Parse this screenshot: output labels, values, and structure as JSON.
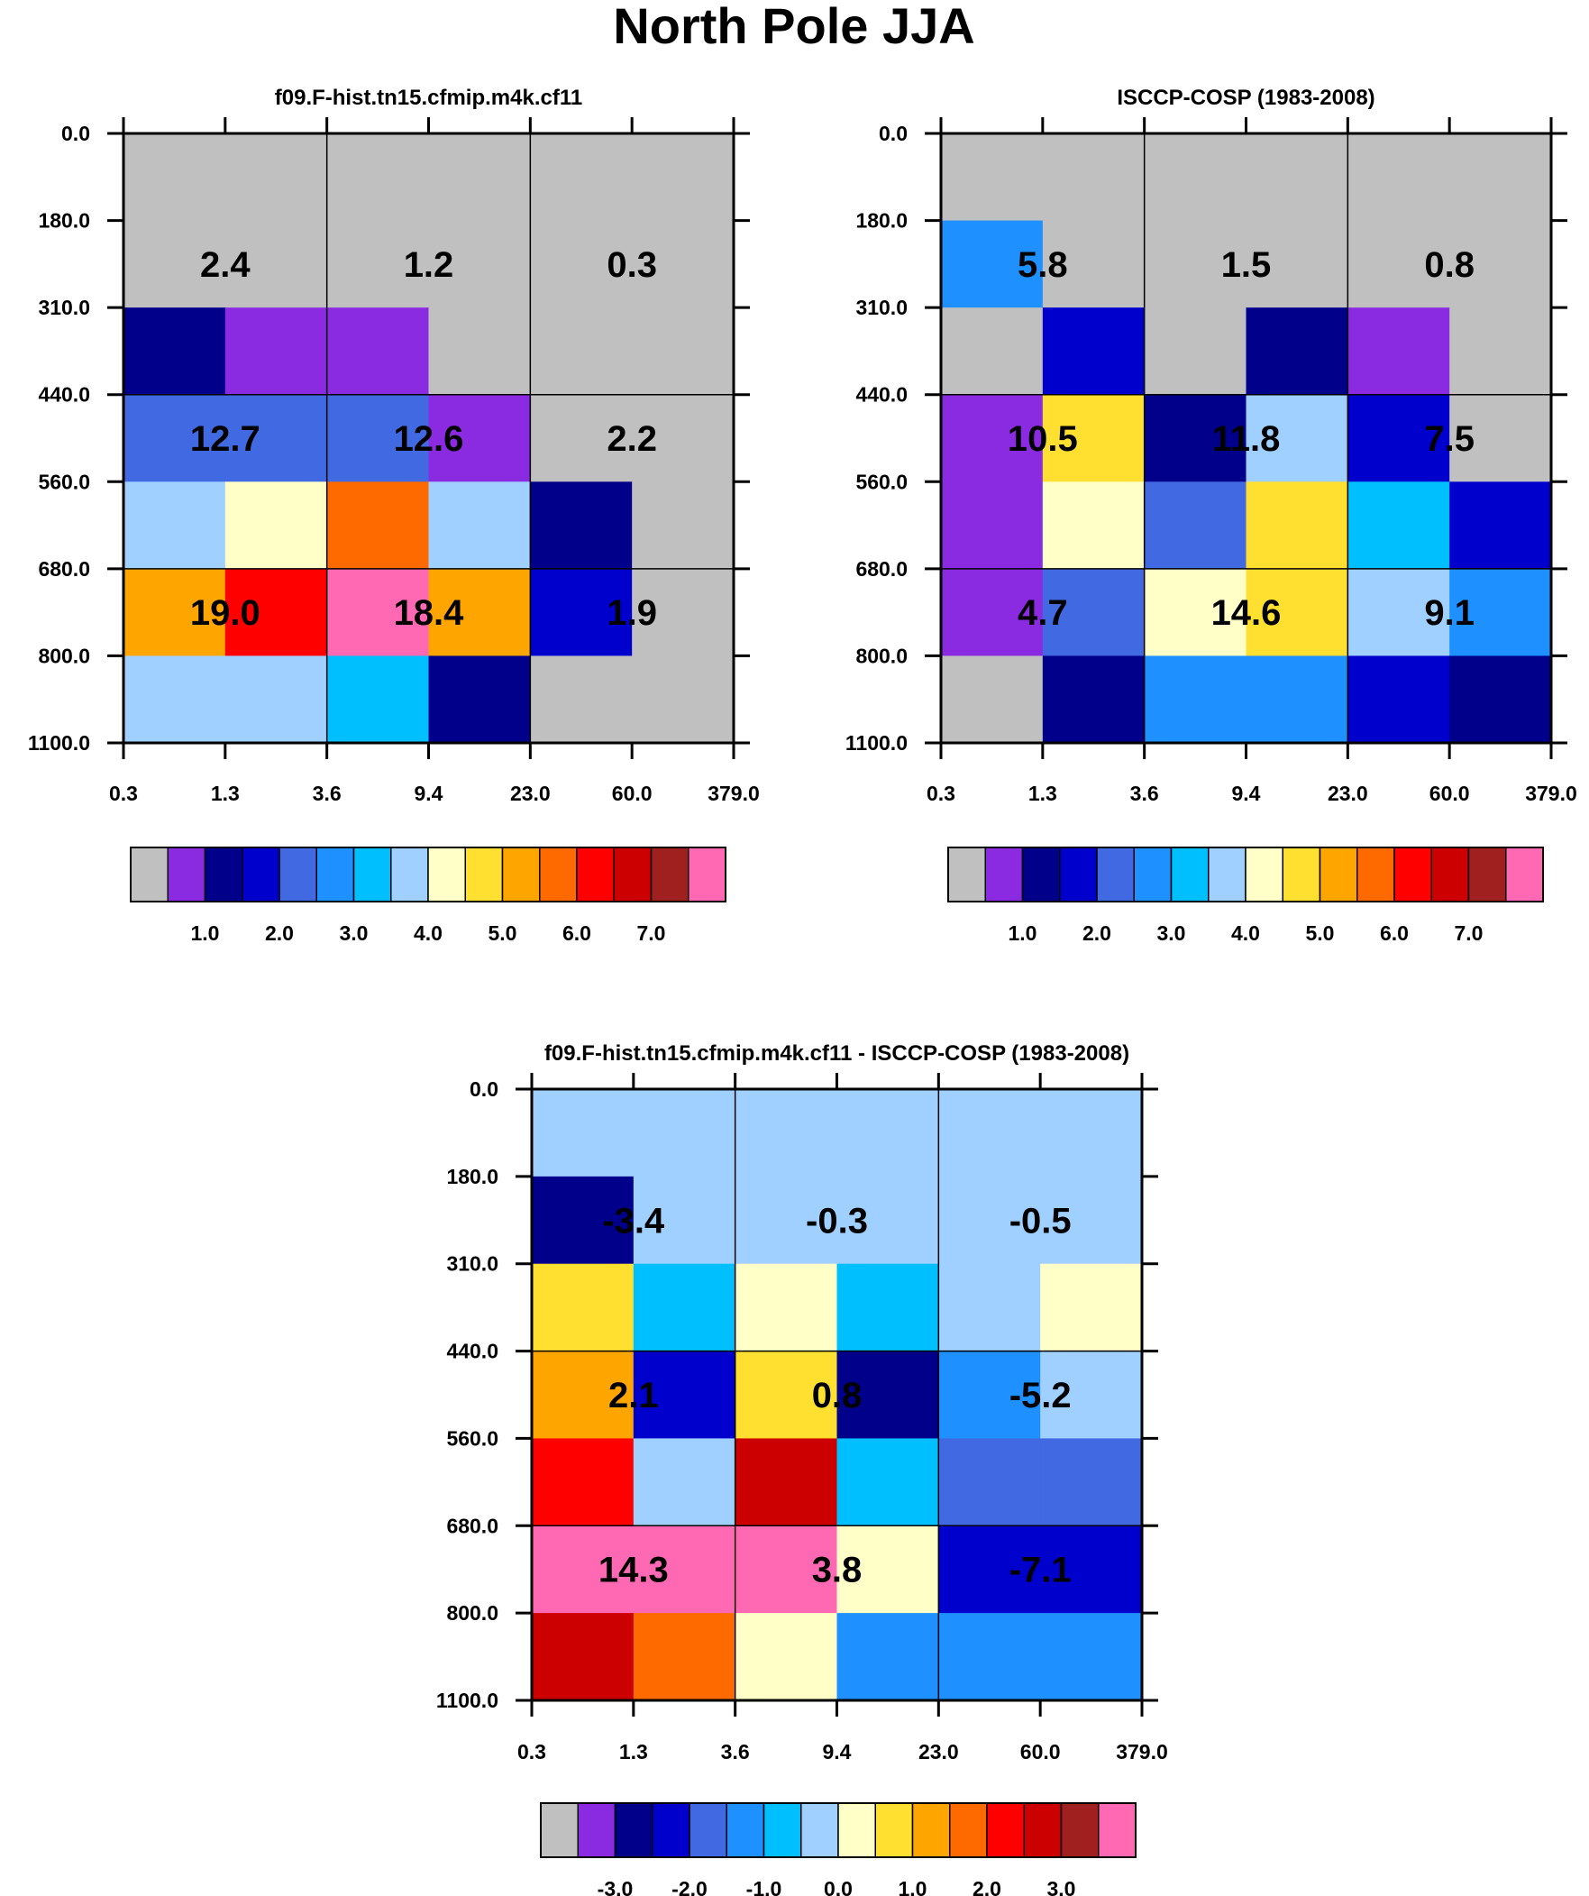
{
  "title": "North Pole JJA",
  "chart_data": [
    {
      "type": "heatmap",
      "title": "f09.F-hist.tn15.cfmip.m4k.cf11",
      "xlabel": "",
      "ylabel": "",
      "x_ticks": [
        "0.3",
        "1.3",
        "3.6",
        "9.4",
        "23.0",
        "60.0",
        "379.0"
      ],
      "y_ticks": [
        "0.0",
        "180.0",
        "310.0",
        "440.0",
        "560.0",
        "680.0",
        "800.0",
        "1100.0"
      ],
      "cells": [
        [
          0,
          0,
          0,
          0,
          0,
          0
        ],
        [
          0,
          0,
          0,
          0,
          0,
          0
        ],
        [
          2,
          1,
          1,
          0,
          0,
          0
        ],
        [
          4,
          4,
          4,
          1,
          0,
          0
        ],
        [
          7,
          8,
          11,
          7,
          2,
          0
        ],
        [
          10,
          12,
          15,
          10,
          3,
          0
        ],
        [
          7,
          7,
          6,
          2,
          0,
          0
        ]
      ],
      "group_sums": [
        [
          "2.4",
          "1.2",
          "0.3"
        ],
        [
          "12.7",
          "12.6",
          "2.2"
        ],
        [
          "19.0",
          "18.4",
          "1.9"
        ]
      ],
      "colorbar": {
        "labels": [
          "1.0",
          "2.0",
          "3.0",
          "4.0",
          "5.0",
          "6.0",
          "7.0"
        ]
      }
    },
    {
      "type": "heatmap",
      "title": "ISCCP-COSP (1983-2008)",
      "xlabel": "",
      "ylabel": "",
      "x_ticks": [
        "0.3",
        "1.3",
        "3.6",
        "9.4",
        "23.0",
        "60.0",
        "379.0"
      ],
      "y_ticks": [
        "0.0",
        "180.0",
        "310.0",
        "440.0",
        "560.0",
        "680.0",
        "800.0",
        "1100.0"
      ],
      "cells": [
        [
          0,
          0,
          0,
          0,
          0,
          0
        ],
        [
          5,
          0,
          0,
          0,
          0,
          0
        ],
        [
          0,
          3,
          0,
          2,
          1,
          0
        ],
        [
          1,
          9,
          2,
          7,
          3,
          0
        ],
        [
          1,
          8,
          4,
          9,
          6,
          3
        ],
        [
          1,
          4,
          8,
          9,
          7,
          5
        ],
        [
          0,
          2,
          5,
          5,
          3,
          2
        ]
      ],
      "group_sums": [
        [
          "5.8",
          "1.5",
          "0.8"
        ],
        [
          "10.5",
          "11.8",
          "7.5"
        ],
        [
          "4.7",
          "14.6",
          "9.1"
        ]
      ],
      "colorbar": {
        "labels": [
          "1.0",
          "2.0",
          "3.0",
          "4.0",
          "5.0",
          "6.0",
          "7.0"
        ]
      }
    },
    {
      "type": "heatmap",
      "title": "f09.F-hist.tn15.cfmip.m4k.cf11 - ISCCP-COSP (1983-2008)",
      "xlabel": "",
      "ylabel": "",
      "x_ticks": [
        "0.3",
        "1.3",
        "3.6",
        "9.4",
        "23.0",
        "60.0",
        "379.0"
      ],
      "y_ticks": [
        "0.0",
        "180.0",
        "310.0",
        "440.0",
        "560.0",
        "680.0",
        "800.0",
        "1100.0"
      ],
      "cells": [
        [
          7,
          7,
          7,
          7,
          7,
          7
        ],
        [
          2,
          7,
          7,
          7,
          7,
          7
        ],
        [
          9,
          6,
          8,
          6,
          7,
          8
        ],
        [
          10,
          3,
          9,
          2,
          5,
          7
        ],
        [
          12,
          7,
          13,
          6,
          4,
          4
        ],
        [
          15,
          15,
          15,
          8,
          3,
          3
        ],
        [
          13,
          11,
          8,
          5,
          5,
          5
        ]
      ],
      "group_sums": [
        [
          "-3.4",
          "-0.3",
          "-0.5"
        ],
        [
          "2.1",
          "0.8",
          "-5.2"
        ],
        [
          "14.3",
          "3.8",
          "-7.1"
        ]
      ],
      "colorbar": {
        "labels": [
          "-3.0",
          "-2.0",
          "-1.0",
          "0.0",
          "1.0",
          "2.0",
          "3.0"
        ]
      }
    }
  ],
  "palette": [
    "#c0c0c0",
    "#8a2be2",
    "#00008b",
    "#0000cd",
    "#4169e1",
    "#1e90ff",
    "#00bfff",
    "#a0d0ff",
    "#ffffc8",
    "#ffe030",
    "#ffa500",
    "#ff6a00",
    "#ff0000",
    "#cc0000",
    "#a02020",
    "#ff69b4"
  ]
}
